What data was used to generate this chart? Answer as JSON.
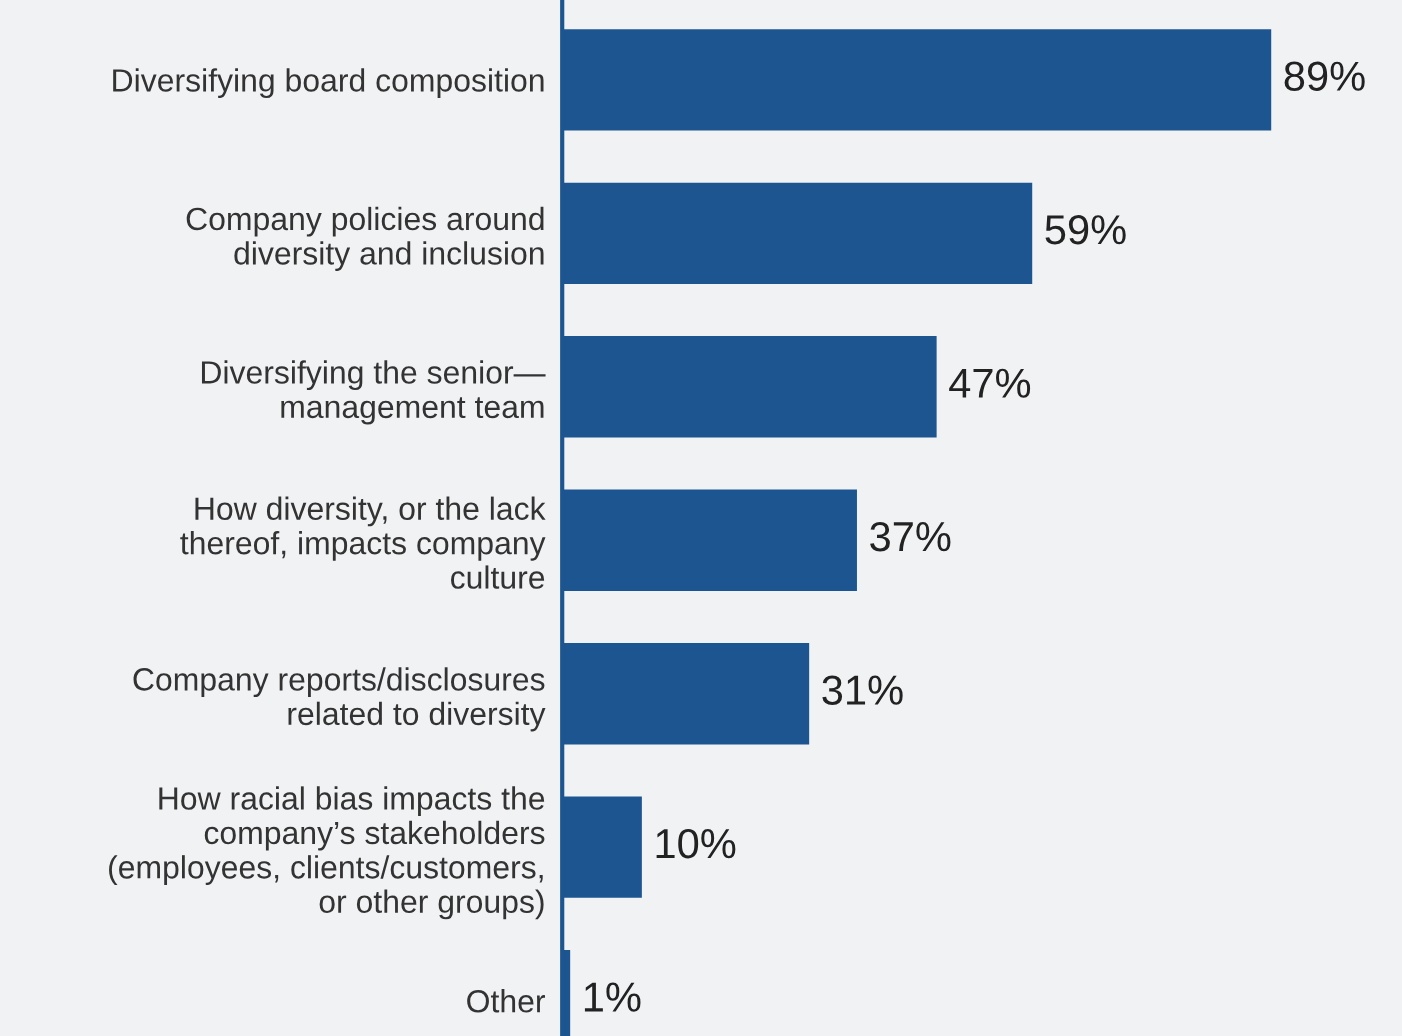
{
  "chart_data": {
    "type": "bar",
    "orientation": "horizontal",
    "categories": [
      "Diversifying board composition",
      "Company policies around\ndiversity and inclusion",
      "Diversifying the senior—\nmanagement team",
      "How diversity, or the lack\nthereof, impacts company\nculture",
      "Company reports/disclosures\nrelated to diversity",
      "How racial bias impacts the\ncompany’s stakeholders\n(employees, clients/customers,\nor other groups)",
      "Other"
    ],
    "values": [
      89,
      59,
      47,
      37,
      31,
      10,
      1
    ],
    "value_labels": [
      "89%",
      "59%",
      "47%",
      "37%",
      "31%",
      "10%",
      "1%"
    ],
    "color": "#1c5590",
    "tick_labels": "y",
    "grid": false,
    "legend": false
  }
}
